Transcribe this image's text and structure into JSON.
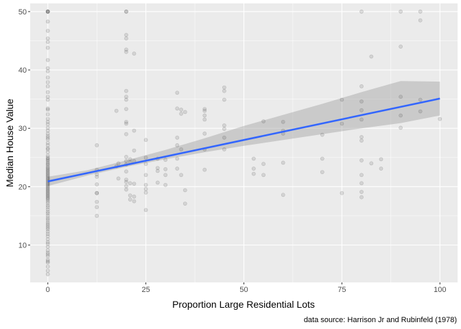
{
  "chart_data": {
    "type": "scatter",
    "title": "",
    "xlabel": "Proportion Large Residential Lots",
    "ylabel": "Median House Value",
    "caption": "data source: Harrison Jr and Rubinfeld (1978)",
    "xlim": [
      -4.5,
      104.5
    ],
    "ylim": [
      3.6,
      51.4
    ],
    "x_ticks": [
      0,
      25,
      50,
      75,
      100
    ],
    "y_ticks": [
      10,
      20,
      30,
      40,
      50
    ],
    "grid": true,
    "legend": "none",
    "colors": {
      "panel": "#ebebeb",
      "grid": "#ffffff",
      "points": "#000000",
      "fit_line": "#3366ff",
      "confidence_band": "#999999"
    },
    "fit": {
      "method": "lm",
      "intercept": 20.9,
      "slope": 0.142,
      "band": [
        {
          "x": 0,
          "lo": 20.1,
          "hi": 21.7
        },
        {
          "x": 10,
          "lo": 21.9,
          "hi": 22.8
        },
        {
          "x": 20,
          "lo": 23.4,
          "hi": 24.5
        },
        {
          "x": 30,
          "lo": 24.7,
          "hi": 26.3
        },
        {
          "x": 40,
          "lo": 25.9,
          "hi": 28.3
        },
        {
          "x": 50,
          "lo": 27.0,
          "hi": 30.4
        },
        {
          "x": 60,
          "lo": 28.0,
          "hi": 32.3
        },
        {
          "x": 70,
          "lo": 29.0,
          "hi": 34.2
        },
        {
          "x": 80,
          "lo": 30.0,
          "hi": 36.2
        },
        {
          "x": 90,
          "lo": 30.9,
          "hi": 38.1
        },
        {
          "x": 100,
          "lo": 32.2,
          "hi": 38.0
        }
      ]
    },
    "points": [
      [
        0,
        50
      ],
      [
        0,
        50
      ],
      [
        0,
        50
      ],
      [
        0,
        50
      ],
      [
        0,
        48.3
      ],
      [
        0,
        46.7
      ],
      [
        0,
        45.4
      ],
      [
        0,
        44.8
      ],
      [
        0,
        43.8
      ],
      [
        0,
        41.7
      ],
      [
        0,
        40.3
      ],
      [
        0,
        39.8
      ],
      [
        0,
        38.7
      ],
      [
        0,
        37.9
      ],
      [
        0,
        37.2
      ],
      [
        0,
        36.2
      ],
      [
        0,
        35.4
      ],
      [
        0,
        34.9
      ],
      [
        0,
        33.4
      ],
      [
        0,
        33.2
      ],
      [
        0,
        32.4
      ],
      [
        0,
        31.6
      ],
      [
        0,
        31.1
      ],
      [
        0,
        30.7
      ],
      [
        0,
        30.1
      ],
      [
        0,
        29.6
      ],
      [
        0,
        29.1
      ],
      [
        0,
        28.7
      ],
      [
        0,
        28.4
      ],
      [
        0,
        28.1
      ],
      [
        0,
        27.5
      ],
      [
        0,
        27.1
      ],
      [
        0,
        26.6
      ],
      [
        0,
        26.4
      ],
      [
        0,
        25.9
      ],
      [
        0,
        25.3
      ],
      [
        0,
        25.0
      ],
      [
        0,
        24.8
      ],
      [
        0,
        24.6
      ],
      [
        0,
        24.4
      ],
      [
        0,
        24.1
      ],
      [
        0,
        23.9
      ],
      [
        0,
        23.7
      ],
      [
        0,
        23.4
      ],
      [
        0,
        23.2
      ],
      [
        0,
        23.0
      ],
      [
        0,
        22.8
      ],
      [
        0,
        22.6
      ],
      [
        0,
        22.4
      ],
      [
        0,
        22.2
      ],
      [
        0,
        22.0
      ],
      [
        0,
        21.8
      ],
      [
        0,
        21.6
      ],
      [
        0,
        21.4
      ],
      [
        0,
        21.2
      ],
      [
        0,
        21.0
      ],
      [
        0,
        20.8
      ],
      [
        0,
        20.6
      ],
      [
        0,
        20.4
      ],
      [
        0,
        20.2
      ],
      [
        0,
        20.0
      ],
      [
        0,
        19.8
      ],
      [
        0,
        19.6
      ],
      [
        0,
        19.4
      ],
      [
        0,
        19.2
      ],
      [
        0,
        19.0
      ],
      [
        0,
        18.8
      ],
      [
        0,
        18.6
      ],
      [
        0,
        18.4
      ],
      [
        0,
        18.2
      ],
      [
        0,
        18.0
      ],
      [
        0,
        17.8
      ],
      [
        0,
        17.5
      ],
      [
        0,
        17.2
      ],
      [
        0,
        16.8
      ],
      [
        0,
        16.5
      ],
      [
        0,
        16.1
      ],
      [
        0,
        15.7
      ],
      [
        0,
        15.4
      ],
      [
        0,
        15.0
      ],
      [
        0,
        14.6
      ],
      [
        0,
        14.3
      ],
      [
        0,
        13.9
      ],
      [
        0,
        13.6
      ],
      [
        0,
        13.3
      ],
      [
        0,
        13.0
      ],
      [
        0,
        12.7
      ],
      [
        0,
        12.3
      ],
      [
        0,
        11.9
      ],
      [
        0,
        11.5
      ],
      [
        0,
        11.0
      ],
      [
        0,
        10.5
      ],
      [
        0,
        10.2
      ],
      [
        0,
        9.7
      ],
      [
        0,
        9.1
      ],
      [
        0,
        8.7
      ],
      [
        0,
        8.4
      ],
      [
        0,
        8.1
      ],
      [
        0,
        7.5
      ],
      [
        0,
        7.2
      ],
      [
        0,
        7.0
      ],
      [
        0,
        6.3
      ],
      [
        0,
        5.6
      ],
      [
        0,
        5.0
      ],
      [
        12.5,
        27.1
      ],
      [
        12.5,
        22.9
      ],
      [
        12.5,
        21.7
      ],
      [
        12.5,
        20.4
      ],
      [
        12.5,
        18.9
      ],
      [
        12.5,
        17.4
      ],
      [
        12.5,
        16.5
      ],
      [
        12.5,
        15.0
      ],
      [
        12.5,
        22.1
      ],
      [
        12.5,
        18.9
      ],
      [
        17.5,
        33.0
      ],
      [
        17.5,
        23.5
      ],
      [
        18,
        24.0
      ],
      [
        18,
        21.4
      ],
      [
        20,
        50
      ],
      [
        20,
        50
      ],
      [
        20,
        46.0
      ],
      [
        20,
        45.4
      ],
      [
        20,
        43.5
      ],
      [
        20,
        43.1
      ],
      [
        20,
        36.4
      ],
      [
        20,
        35.4
      ],
      [
        20,
        34.9
      ],
      [
        20,
        33.3
      ],
      [
        20,
        31.1
      ],
      [
        20,
        30.8
      ],
      [
        20,
        29.0
      ],
      [
        20,
        25.1
      ],
      [
        20,
        24.4
      ],
      [
        20,
        23.8
      ],
      [
        20,
        22.6
      ],
      [
        20,
        21.2
      ],
      [
        20,
        20.8
      ],
      [
        20,
        20.1
      ],
      [
        20,
        19.5
      ],
      [
        21,
        24.7
      ],
      [
        21,
        24.2
      ],
      [
        21,
        20.6
      ],
      [
        21,
        18.5
      ],
      [
        21,
        17.8
      ],
      [
        22,
        42.8
      ],
      [
        22,
        29.6
      ],
      [
        22,
        26.2
      ],
      [
        22,
        24.4
      ],
      [
        22,
        20.5
      ],
      [
        22,
        18.3
      ],
      [
        22,
        17.5
      ],
      [
        25,
        28.0
      ],
      [
        25,
        25.0
      ],
      [
        25,
        23.9
      ],
      [
        25,
        22.0
      ],
      [
        25,
        20.3
      ],
      [
        25,
        19.6
      ],
      [
        25,
        19.0
      ],
      [
        25,
        16.0
      ],
      [
        28,
        24.8
      ],
      [
        28,
        23.2
      ],
      [
        28,
        22.7
      ],
      [
        28,
        20.7
      ],
      [
        30,
        24.6
      ],
      [
        30,
        23.0
      ],
      [
        30,
        22.0
      ],
      [
        30,
        20.3
      ],
      [
        33,
        36.1
      ],
      [
        33,
        33.4
      ],
      [
        33,
        28.4
      ],
      [
        33,
        27.1
      ],
      [
        33,
        24.8
      ],
      [
        33,
        23.1
      ],
      [
        34,
        33.2
      ],
      [
        34,
        32.5
      ],
      [
        34,
        26.4
      ],
      [
        34,
        22.0
      ],
      [
        35,
        32.8
      ],
      [
        35,
        19.4
      ],
      [
        35,
        17.1
      ],
      [
        40,
        33.3
      ],
      [
        40,
        33.0
      ],
      [
        40,
        32.2
      ],
      [
        40,
        31.5
      ],
      [
        40,
        29.1
      ],
      [
        40,
        26.4
      ],
      [
        40,
        22.9
      ],
      [
        45,
        37.0
      ],
      [
        45,
        36.4
      ],
      [
        45,
        34.9
      ],
      [
        45,
        30.5
      ],
      [
        45,
        29.9
      ],
      [
        45,
        28.4
      ],
      [
        45,
        26.4
      ],
      [
        52.5,
        24.8
      ],
      [
        52.5,
        23.1
      ],
      [
        52.5,
        22.2
      ],
      [
        55,
        31.2
      ],
      [
        55,
        23.9
      ],
      [
        55,
        22.0
      ],
      [
        60,
        31.1
      ],
      [
        60,
        29.6
      ],
      [
        60,
        29.1
      ],
      [
        60,
        24.1
      ],
      [
        60,
        18.6
      ],
      [
        70,
        28.9
      ],
      [
        70,
        24.8
      ],
      [
        70,
        22.5
      ],
      [
        75,
        34.9
      ],
      [
        75,
        30.8
      ],
      [
        75,
        18.9
      ],
      [
        80,
        50
      ],
      [
        80,
        37.2
      ],
      [
        80,
        34.6
      ],
      [
        80,
        33.1
      ],
      [
        80,
        31.5
      ],
      [
        80,
        28.5
      ],
      [
        80,
        27.9
      ],
      [
        80,
        24.5
      ],
      [
        80,
        22.0
      ],
      [
        80,
        20.6
      ],
      [
        80,
        19.1
      ],
      [
        80,
        18.2
      ],
      [
        82.5,
        42.3
      ],
      [
        82.5,
        24.0
      ],
      [
        85,
        24.7
      ],
      [
        85,
        23.1
      ],
      [
        90,
        50
      ],
      [
        90,
        44.0
      ],
      [
        90,
        35.4
      ],
      [
        90,
        32.2
      ],
      [
        90,
        30.1
      ],
      [
        95,
        50
      ],
      [
        95,
        48.5
      ],
      [
        95,
        34.9
      ],
      [
        95,
        32.9
      ],
      [
        100,
        31.6
      ]
    ]
  }
}
